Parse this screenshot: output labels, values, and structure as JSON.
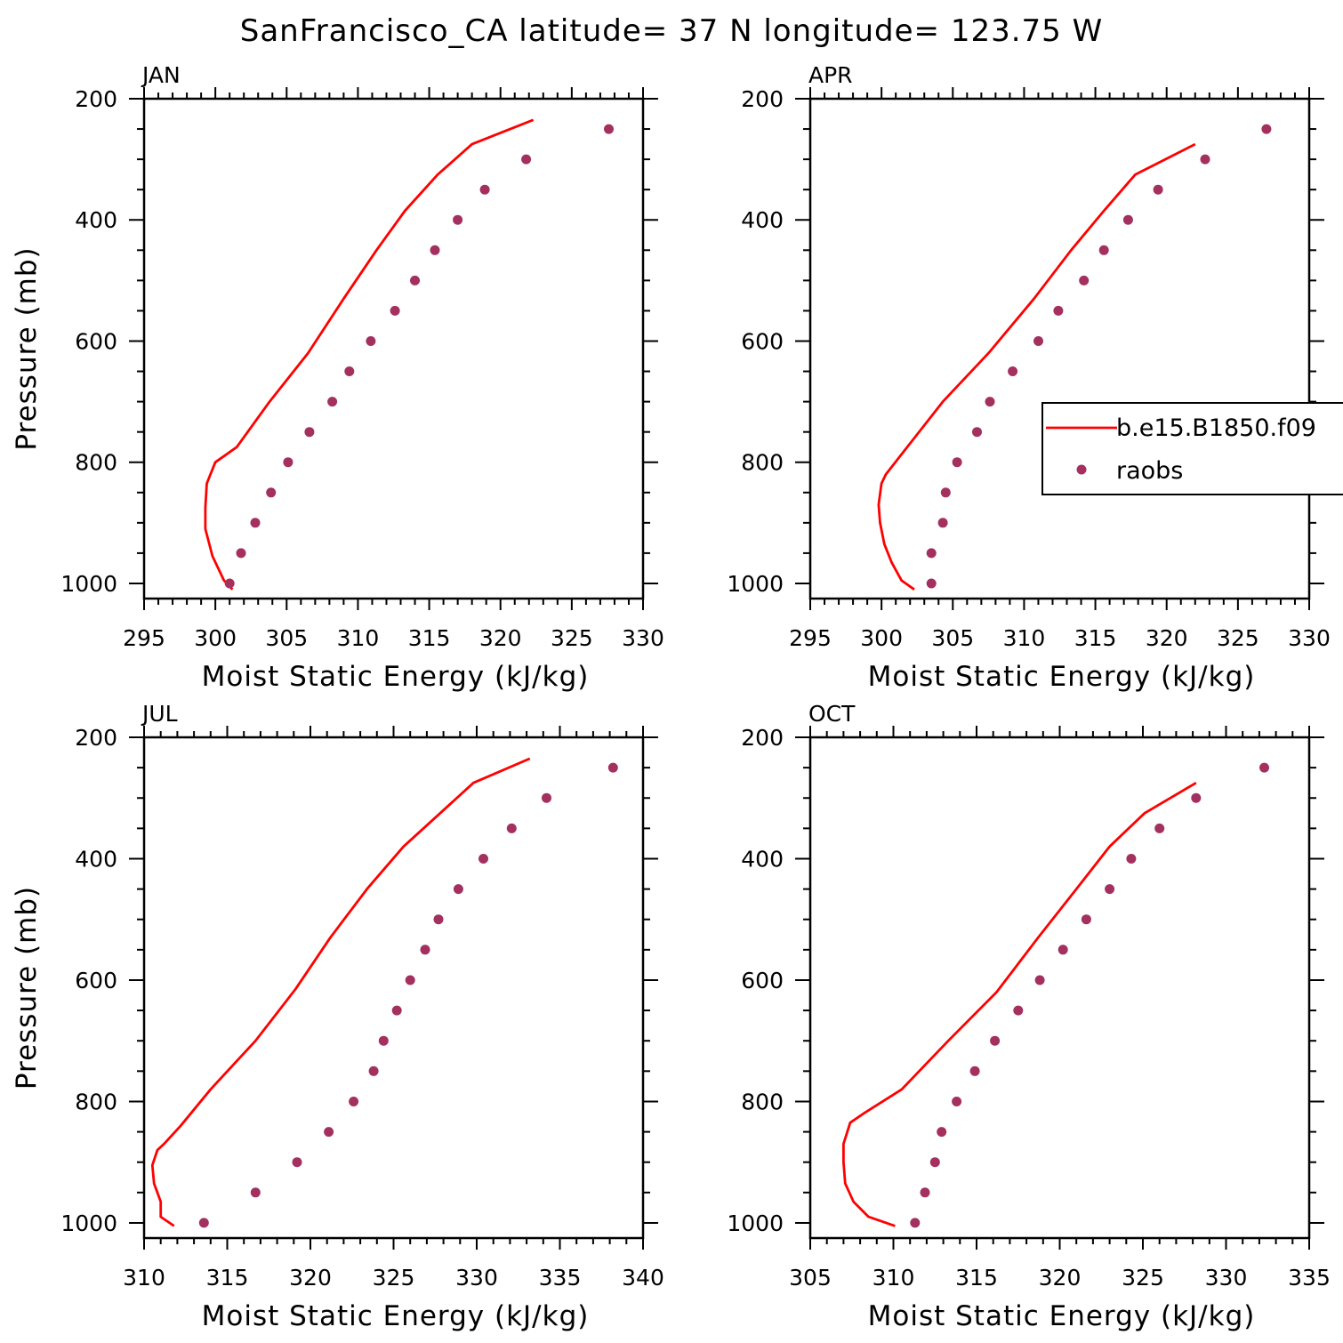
{
  "figure_title": "SanFrancisco_CA  latitude= 37 N longitude= 123.75 W",
  "colors": {
    "model": "#ff0000",
    "obs": "#a3305e",
    "axis": "#000000"
  },
  "legend": {
    "model_label": "b.e15.B1850.f09",
    "obs_label": "raobs",
    "placement": "right edge, middle of APR panel (clipped by figure edge)"
  },
  "chart_data": [
    {
      "type": "line+scatter",
      "title": "JAN",
      "xlabel": "Moist Static Energy (kJ/kg)",
      "ylabel": "Pressure (mb)",
      "xlim": [
        295,
        330
      ],
      "ylim": [
        1025,
        200
      ],
      "xticks": [
        295,
        300,
        305,
        310,
        315,
        320,
        325,
        330
      ],
      "yticks": [
        200,
        400,
        600,
        800,
        1000
      ],
      "series": [
        {
          "name": "b.e15.B1850.f09",
          "kind": "line",
          "x": [
            301.2,
            300.6,
            299.8,
            299.3,
            299.3,
            299.4,
            300.0,
            301.5,
            303.8,
            306.5,
            309.0,
            311.3,
            313.3,
            315.6,
            318.0,
            322.3
          ],
          "y": [
            1010,
            995,
            955,
            910,
            875,
            835,
            800,
            775,
            700,
            620,
            530,
            450,
            385,
            325,
            275,
            235
          ]
        },
        {
          "name": "raobs",
          "kind": "scatter",
          "x": [
            301.0,
            301.8,
            302.8,
            303.9,
            305.1,
            306.6,
            308.2,
            309.4,
            310.9,
            312.6,
            314.0,
            315.4,
            317.0,
            318.9,
            321.8,
            327.6
          ],
          "y": [
            1000,
            950,
            900,
            850,
            800,
            750,
            700,
            650,
            600,
            550,
            500,
            450,
            400,
            350,
            300,
            250
          ]
        }
      ]
    },
    {
      "type": "line+scatter",
      "title": "APR",
      "xlabel": "Moist Static Energy (kJ/kg)",
      "ylabel": "",
      "xlim": [
        295,
        330
      ],
      "ylim": [
        1025,
        200
      ],
      "xticks": [
        295,
        300,
        305,
        310,
        315,
        320,
        325,
        330
      ],
      "yticks": [
        200,
        400,
        600,
        800,
        1000
      ],
      "series": [
        {
          "name": "b.e15.B1850.f09",
          "kind": "line",
          "x": [
            302.3,
            301.4,
            300.7,
            300.2,
            299.9,
            299.8,
            300.0,
            300.3,
            301.8,
            304.3,
            307.5,
            310.7,
            313.3,
            315.6,
            317.8,
            322.0
          ],
          "y": [
            1010,
            995,
            965,
            935,
            900,
            870,
            835,
            820,
            775,
            700,
            620,
            530,
            450,
            385,
            325,
            275
          ]
        },
        {
          "name": "raobs",
          "kind": "scatter",
          "x": [
            303.5,
            303.5,
            304.3,
            304.5,
            305.3,
            306.7,
            307.6,
            309.2,
            311.0,
            312.4,
            314.2,
            315.6,
            317.3,
            319.4,
            322.7,
            327.0
          ],
          "y": [
            1000,
            950,
            900,
            850,
            800,
            750,
            700,
            650,
            600,
            550,
            500,
            450,
            400,
            350,
            300,
            250
          ]
        }
      ]
    },
    {
      "type": "line+scatter",
      "title": "JUL",
      "xlabel": "Moist Static Energy (kJ/kg)",
      "ylabel": "Pressure (mb)",
      "xlim": [
        310,
        340
      ],
      "ylim": [
        1025,
        200
      ],
      "xticks": [
        310,
        315,
        320,
        325,
        330,
        335,
        340
      ],
      "yticks": [
        200,
        400,
        600,
        800,
        1000
      ],
      "series": [
        {
          "name": "b.e15.B1850.f09",
          "kind": "line",
          "x": [
            311.8,
            311.0,
            311.0,
            310.6,
            310.5,
            310.8,
            311.2,
            312.2,
            314.0,
            316.7,
            319.1,
            321.2,
            323.4,
            325.6,
            327.8,
            329.8,
            333.2
          ],
          "y": [
            1005,
            990,
            965,
            935,
            905,
            880,
            870,
            840,
            780,
            700,
            615,
            530,
            450,
            380,
            325,
            275,
            235
          ]
        },
        {
          "name": "raobs",
          "kind": "scatter",
          "x": [
            313.6,
            316.7,
            319.2,
            321.1,
            322.6,
            323.8,
            324.4,
            325.2,
            326.0,
            326.9,
            327.7,
            328.9,
            330.4,
            332.1,
            334.2,
            338.2
          ],
          "y": [
            1000,
            950,
            900,
            850,
            800,
            750,
            700,
            650,
            600,
            550,
            500,
            450,
            400,
            350,
            300,
            250
          ]
        }
      ]
    },
    {
      "type": "line+scatter",
      "title": "OCT",
      "xlabel": "Moist Static Energy (kJ/kg)",
      "ylabel": "",
      "xlim": [
        305,
        335
      ],
      "ylim": [
        1025,
        200
      ],
      "xticks": [
        305,
        310,
        315,
        320,
        325,
        330,
        335
      ],
      "yticks": [
        200,
        400,
        600,
        800,
        1000
      ],
      "series": [
        {
          "name": "b.e15.B1850.f09",
          "kind": "line",
          "x": [
            310.1,
            308.5,
            307.6,
            307.1,
            307.0,
            307.0,
            307.4,
            308.2,
            310.5,
            313.3,
            316.2,
            318.7,
            321.0,
            323.0,
            325.1,
            328.2
          ],
          "y": [
            1005,
            990,
            965,
            935,
            900,
            870,
            835,
            820,
            780,
            700,
            620,
            530,
            450,
            380,
            325,
            275
          ]
        },
        {
          "name": "raobs",
          "kind": "scatter",
          "x": [
            311.3,
            311.9,
            312.5,
            312.9,
            313.8,
            314.9,
            316.1,
            317.5,
            318.8,
            320.2,
            321.6,
            323.0,
            324.3,
            326.0,
            328.2,
            332.3
          ],
          "y": [
            1000,
            950,
            900,
            850,
            800,
            750,
            700,
            650,
            600,
            550,
            500,
            450,
            400,
            350,
            300,
            250
          ]
        }
      ]
    }
  ]
}
